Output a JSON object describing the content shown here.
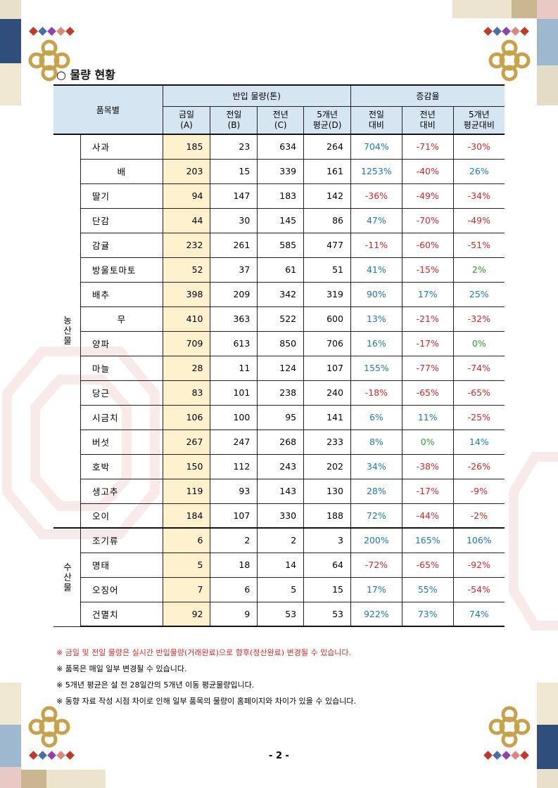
{
  "title": "○ 물량 현황",
  "header": {
    "item_col": "품목별",
    "group_volume": "반입 물량(톤)",
    "group_rate": "증감율",
    "cols": [
      [
        "금일",
        "(A)"
      ],
      [
        "전일",
        "(B)"
      ],
      [
        "전년",
        "(C)"
      ],
      [
        "5개년",
        "평균(D)"
      ],
      [
        "전일",
        "대비"
      ],
      [
        "전년",
        "대비"
      ],
      [
        "5개년",
        "평균대비"
      ]
    ]
  },
  "categories": [
    "농산물",
    "수산물"
  ],
  "rows": [
    {
      "item": "사과",
      "a": "185",
      "b": "23",
      "c": "634",
      "d": "264",
      "r1": "704%",
      "r2": "-71%",
      "r3": "-30%"
    },
    {
      "item": "배",
      "a": "203",
      "b": "15",
      "c": "339",
      "d": "161",
      "r1": "1253%",
      "r2": "-40%",
      "r3": "26%"
    },
    {
      "item": "딸기",
      "a": "94",
      "b": "147",
      "c": "183",
      "d": "142",
      "r1": "-36%",
      "r2": "-49%",
      "r3": "-34%"
    },
    {
      "item": "단감",
      "a": "44",
      "b": "30",
      "c": "145",
      "d": "86",
      "r1": "47%",
      "r2": "-70%",
      "r3": "-49%"
    },
    {
      "item": "감귤",
      "a": "232",
      "b": "261",
      "c": "585",
      "d": "477",
      "r1": "-11%",
      "r2": "-60%",
      "r3": "-51%"
    },
    {
      "item": "방울토마토",
      "a": "52",
      "b": "37",
      "c": "61",
      "d": "51",
      "r1": "41%",
      "r2": "-15%",
      "r3": "2%"
    },
    {
      "item": "배추",
      "a": "398",
      "b": "209",
      "c": "342",
      "d": "319",
      "r1": "90%",
      "r2": "17%",
      "r3": "25%"
    },
    {
      "item": "무",
      "a": "410",
      "b": "363",
      "c": "522",
      "d": "600",
      "r1": "13%",
      "r2": "-21%",
      "r3": "-32%"
    },
    {
      "item": "양파",
      "a": "709",
      "b": "613",
      "c": "850",
      "d": "706",
      "r1": "16%",
      "r2": "-17%",
      "r3": "0%"
    },
    {
      "item": "마늘",
      "a": "28",
      "b": "11",
      "c": "124",
      "d": "107",
      "r1": "155%",
      "r2": "-77%",
      "r3": "-74%"
    },
    {
      "item": "당근",
      "a": "83",
      "b": "101",
      "c": "238",
      "d": "240",
      "r1": "-18%",
      "r2": "-65%",
      "r3": "-65%"
    },
    {
      "item": "시금치",
      "a": "106",
      "b": "100",
      "c": "95",
      "d": "141",
      "r1": "6%",
      "r2": "11%",
      "r3": "-25%"
    },
    {
      "item": "버섯",
      "a": "267",
      "b": "247",
      "c": "268",
      "d": "233",
      "r1": "8%",
      "r2": "0%",
      "r3": "14%"
    },
    {
      "item": "호박",
      "a": "150",
      "b": "112",
      "c": "243",
      "d": "202",
      "r1": "34%",
      "r2": "-38%",
      "r3": "-26%"
    },
    {
      "item": "생고추",
      "a": "119",
      "b": "93",
      "c": "143",
      "d": "130",
      "r1": "28%",
      "r2": "-17%",
      "r3": "-9%"
    },
    {
      "item": "오이",
      "a": "184",
      "b": "107",
      "c": "330",
      "d": "188",
      "r1": "72%",
      "r2": "-44%",
      "r3": "-2%"
    },
    {
      "item": "조기류",
      "a": "6",
      "b": "2",
      "c": "2",
      "d": "3",
      "r1": "200%",
      "r2": "165%",
      "r3": "106%"
    },
    {
      "item": "명태",
      "a": "5",
      "b": "18",
      "c": "14",
      "d": "64",
      "r1": "-72%",
      "r2": "-65%",
      "r3": "-92%"
    },
    {
      "item": "오징어",
      "a": "7",
      "b": "6",
      "c": "5",
      "d": "15",
      "r1": "17%",
      "r2": "55%",
      "r3": "-54%"
    },
    {
      "item": "건멸치",
      "a": "92",
      "b": "9",
      "c": "53",
      "d": "53",
      "r1": "922%",
      "r2": "73%",
      "r3": "74%"
    }
  ],
  "notes": [
    "※ 금일 및 전일 물량은 실시간 반입물량(거래완료)으로 향후(정산완료) 변경될 수 있습니다.",
    "※ 품목은 매일 일부 변경될 수 있습니다.",
    "※ 5개년 평균은 설 전 28일간의 5개년 이동 평균물량입니다.",
    "※ 동향 자료 작성 시점 차이로 인해 일부 품목의 물량이 홈페이지와 차이가 있을 수 있습니다."
  ],
  "page_number": "- 2 -",
  "colors": {
    "header_bg": "#d6e5f2",
    "today_col_bg": "#fdf0cc",
    "positive": "#1f78b4",
    "negative": "#d62728",
    "zero": "#2ca02c",
    "note_highlight": "#d62728"
  }
}
